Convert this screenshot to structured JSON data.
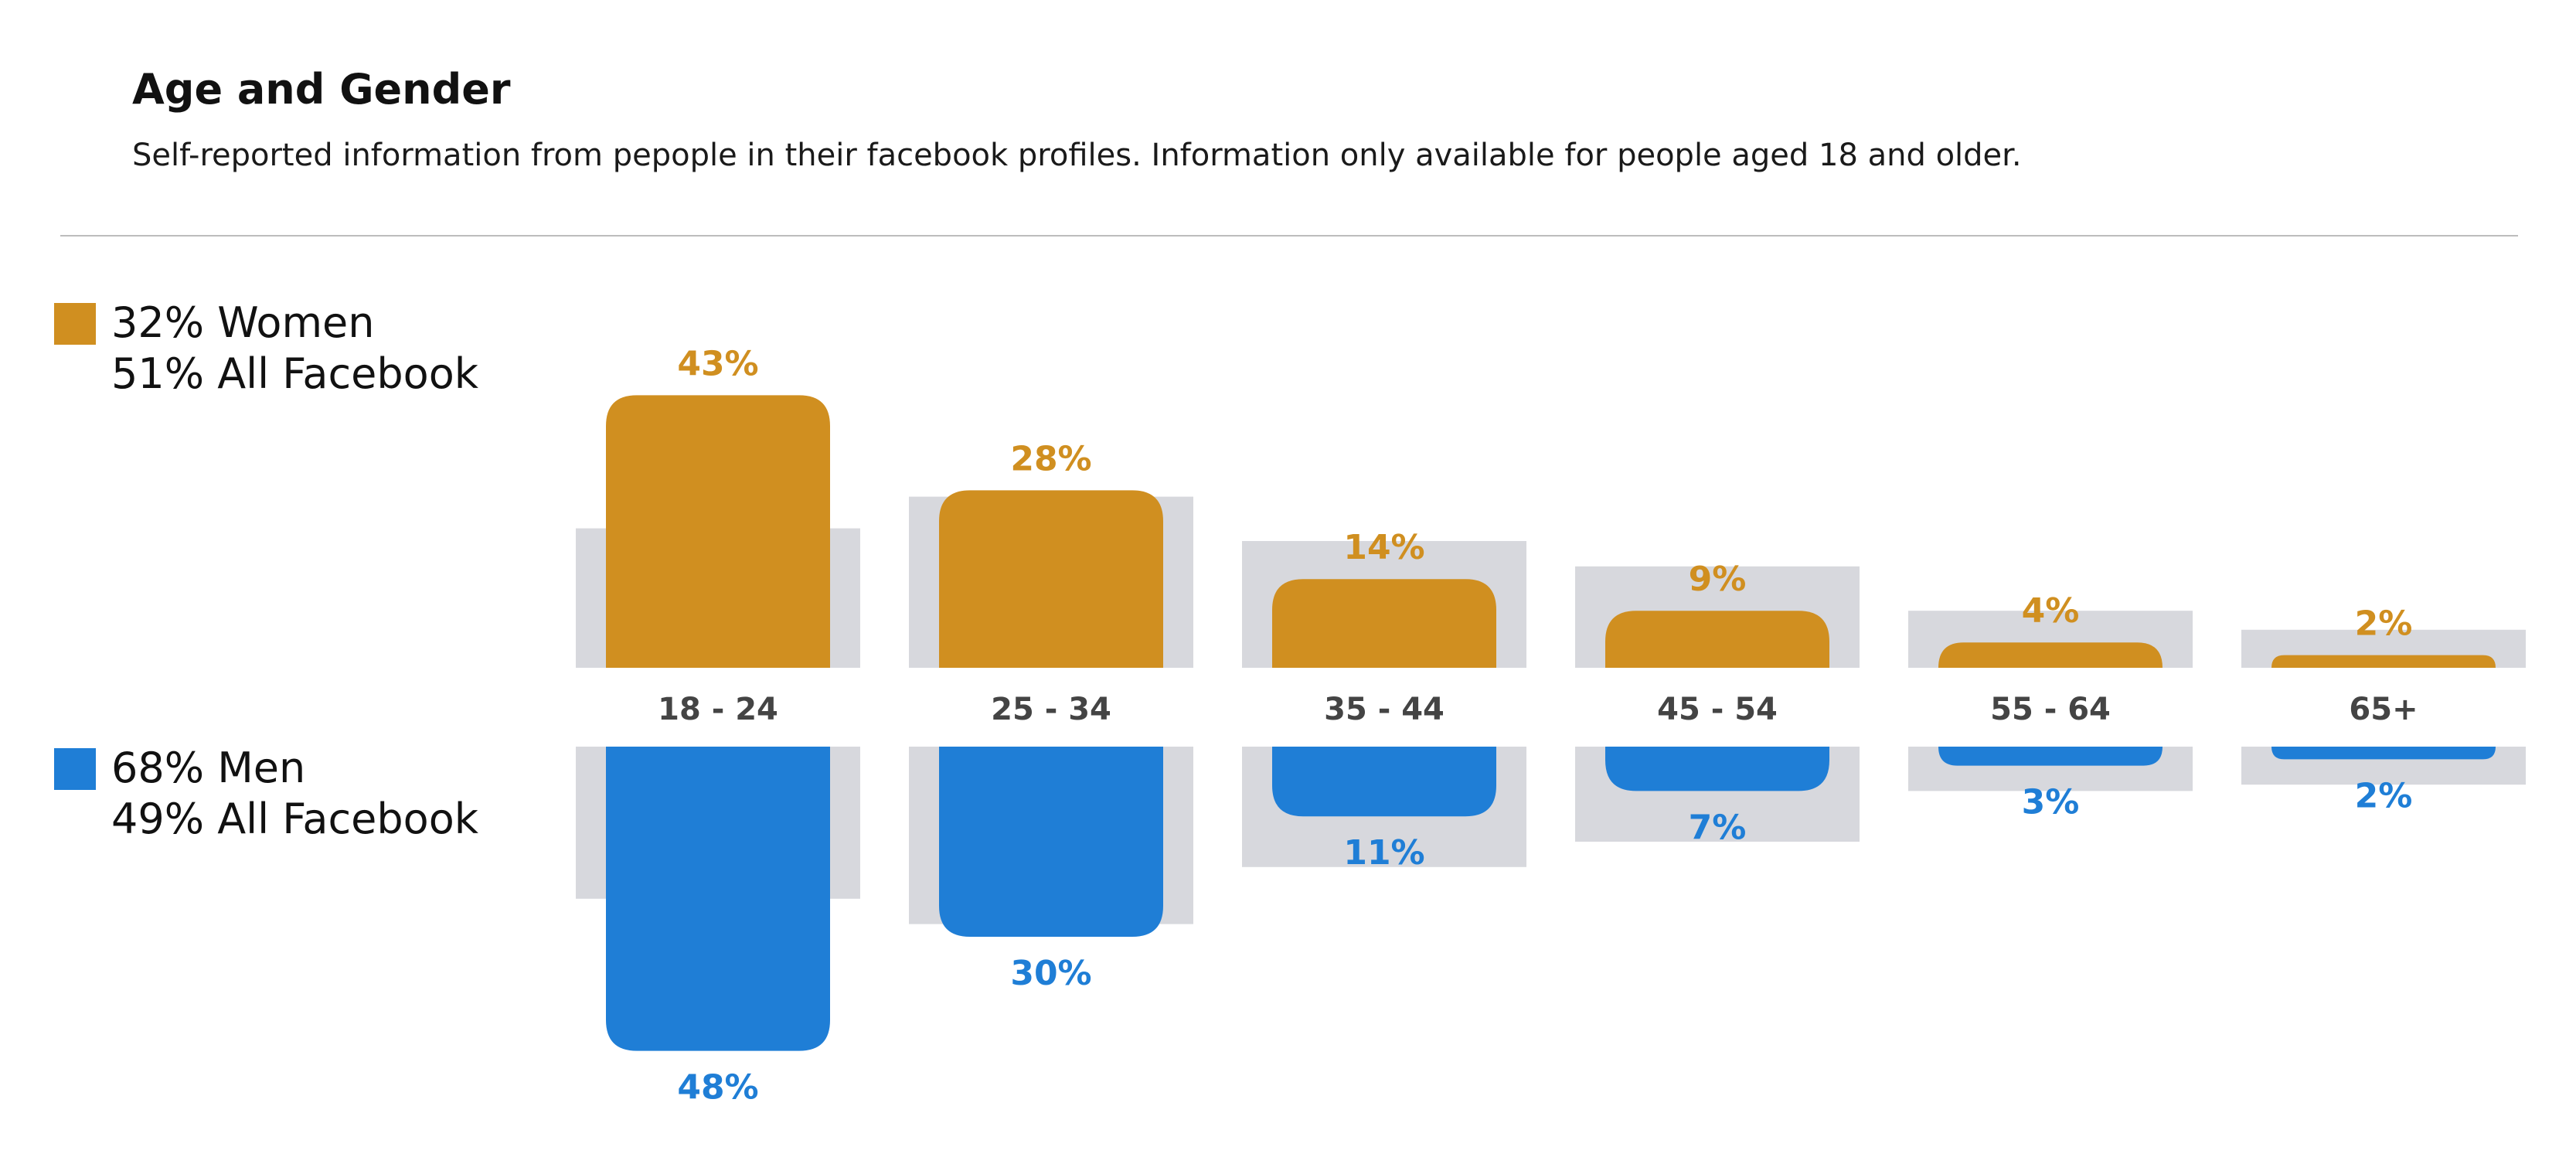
{
  "header": {
    "title": "Age and Gender",
    "subtitle": "Self-reported information from pepople in their facebook profiles. Information only available for people aged 18 and older."
  },
  "legend": {
    "women": {
      "line1": "32% Women",
      "line2": "51% All Facebook",
      "color": "#D08F20"
    },
    "men": {
      "line1": "68% Men",
      "line2": "49% All Facebook",
      "color": "#1F7ED6"
    }
  },
  "colors": {
    "baseline": "#D7D8DD",
    "label": "#444444"
  },
  "chart_data": {
    "type": "bar",
    "categories": [
      "18 - 24",
      "25 - 34",
      "35 - 44",
      "45 - 54",
      "55 - 64",
      "65+"
    ],
    "series": [
      {
        "name": "Women",
        "values": [
          43,
          28,
          14,
          9,
          4,
          2
        ],
        "labels": [
          "43%",
          "28%",
          "14%",
          "9%",
          "4%",
          "2%"
        ]
      },
      {
        "name": "Men",
        "values": [
          48,
          30,
          11,
          7,
          3,
          2
        ],
        "labels": [
          "48%",
          "30%",
          "11%",
          "7%",
          "3%",
          "2%"
        ]
      }
    ],
    "all_facebook": {
      "women": [
        22,
        27,
        20,
        16,
        9,
        6
      ],
      "men": [
        24,
        28,
        19,
        15,
        7,
        6
      ]
    }
  }
}
